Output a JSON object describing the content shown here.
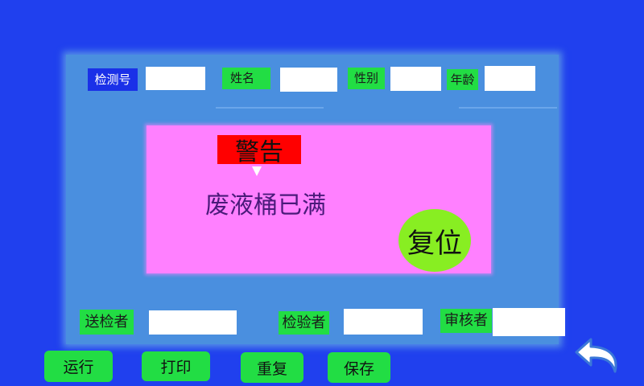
{
  "header": {
    "test_no_label": "检测号",
    "test_no_value": "",
    "name_label": "姓名",
    "name_value": "",
    "gender_label": "性别",
    "gender_value": "",
    "age_label": "年龄",
    "age_value": ""
  },
  "warning": {
    "title": "警告",
    "message": "废液桶已满",
    "reset_label": "复位"
  },
  "footer_fields": {
    "sender_label": "送检者",
    "sender_value": "",
    "inspector_label": "检验者",
    "inspector_value": "",
    "reviewer_label": "审核者",
    "reviewer_value": ""
  },
  "buttons": {
    "run": "运行",
    "print": "打印",
    "repeat": "重复",
    "save": "保存"
  },
  "icons": {
    "back": "back-arrow-icon"
  },
  "colors": {
    "background": "#2040ee",
    "panel": "#4a8fdf",
    "label_green": "#22dd44",
    "label_blue": "#1a30e8",
    "dialog": "#ff80ff",
    "warning_red": "#ff0000",
    "reset_green": "#88ee22"
  }
}
